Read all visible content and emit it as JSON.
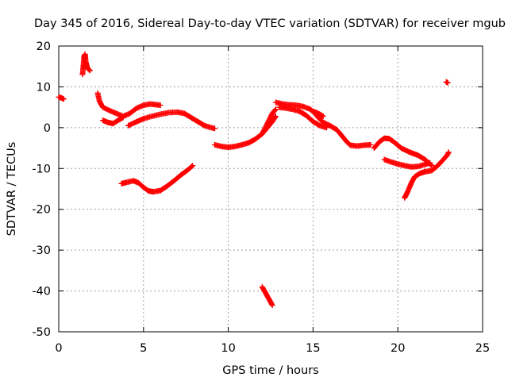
{
  "chart_data": {
    "type": "scatter",
    "title": "Day 345 of 2016, Sidereal Day-to-day VTEC variation (SDTVAR) for receiver mgub",
    "xlabel": "GPS time / hours",
    "ylabel": "SDTVAR / TECUs",
    "xlim": [
      0,
      25
    ],
    "ylim": [
      -50,
      20
    ],
    "xticks": [
      "0",
      "5",
      "10",
      "15",
      "20",
      "25"
    ],
    "yticks": [
      "20",
      "10",
      "0",
      "-10",
      "-20",
      "-30",
      "-40",
      "-50"
    ],
    "grid": true,
    "marker_color": "#ff0000",
    "series": [
      {
        "points": [
          [
            0.0,
            7.5
          ],
          [
            0.15,
            7.3
          ],
          [
            0.3,
            7.0
          ]
        ]
      },
      {
        "points": [
          [
            1.4,
            13.0
          ],
          [
            1.45,
            15.0
          ],
          [
            1.5,
            17.5
          ],
          [
            1.55,
            18.0
          ],
          [
            1.6,
            16.0
          ],
          [
            1.7,
            14.5
          ],
          [
            1.85,
            14.0
          ]
        ]
      },
      {
        "points": [
          [
            2.3,
            8.5
          ],
          [
            2.4,
            6.5
          ],
          [
            2.6,
            5.0
          ],
          [
            3.0,
            4.2
          ],
          [
            3.4,
            3.5
          ],
          [
            3.8,
            2.8
          ],
          [
            4.2,
            3.5
          ],
          [
            4.6,
            4.8
          ],
          [
            5.0,
            5.5
          ],
          [
            5.4,
            5.8
          ],
          [
            5.8,
            5.6
          ],
          [
            6.0,
            5.5
          ]
        ]
      },
      {
        "points": [
          [
            2.6,
            1.8
          ],
          [
            2.9,
            1.3
          ],
          [
            3.2,
            1.0
          ],
          [
            3.5,
            1.8
          ],
          [
            3.8,
            2.5
          ]
        ]
      },
      {
        "points": [
          [
            4.1,
            0.5
          ],
          [
            4.5,
            1.3
          ],
          [
            5.0,
            2.2
          ],
          [
            5.5,
            2.8
          ],
          [
            6.0,
            3.3
          ],
          [
            6.5,
            3.7
          ],
          [
            7.0,
            3.8
          ],
          [
            7.4,
            3.5
          ],
          [
            7.8,
            2.5
          ],
          [
            8.2,
            1.5
          ],
          [
            8.6,
            0.5
          ],
          [
            9.0,
            0.0
          ],
          [
            9.2,
            -0.2
          ]
        ]
      },
      {
        "points": [
          [
            3.7,
            -13.7
          ],
          [
            4.0,
            -13.4
          ],
          [
            4.4,
            -13.0
          ],
          [
            4.7,
            -13.5
          ],
          [
            5.0,
            -14.6
          ],
          [
            5.3,
            -15.5
          ],
          [
            5.6,
            -15.7
          ],
          [
            6.0,
            -15.4
          ],
          [
            6.4,
            -14.3
          ],
          [
            6.8,
            -13.0
          ],
          [
            7.2,
            -11.6
          ],
          [
            7.6,
            -10.4
          ],
          [
            7.9,
            -9.3
          ]
        ]
      },
      {
        "points": [
          [
            9.2,
            -4.2
          ],
          [
            9.6,
            -4.6
          ],
          [
            10.0,
            -4.8
          ],
          [
            10.4,
            -4.6
          ],
          [
            10.8,
            -4.2
          ],
          [
            11.2,
            -3.7
          ],
          [
            11.6,
            -2.8
          ],
          [
            12.0,
            -1.5
          ],
          [
            12.3,
            0.0
          ],
          [
            12.6,
            1.5
          ],
          [
            12.8,
            2.8
          ]
        ]
      },
      {
        "points": [
          [
            12.0,
            -1.5
          ],
          [
            12.3,
            1.0
          ],
          [
            12.6,
            3.5
          ],
          [
            12.8,
            4.5
          ]
        ]
      },
      {
        "points": [
          [
            12.0,
            -39.0
          ],
          [
            12.2,
            -40.5
          ],
          [
            12.4,
            -42.0
          ],
          [
            12.6,
            -43.5
          ]
        ]
      },
      {
        "points": [
          [
            12.8,
            6.2
          ],
          [
            13.2,
            5.8
          ],
          [
            13.6,
            5.6
          ],
          [
            14.0,
            5.5
          ],
          [
            14.4,
            5.2
          ],
          [
            14.8,
            4.6
          ],
          [
            15.1,
            3.6
          ],
          [
            15.3,
            2.5
          ],
          [
            15.6,
            1.3
          ],
          [
            16.0,
            0.5
          ],
          [
            16.4,
            -0.5
          ],
          [
            16.7,
            -2.0
          ],
          [
            17.0,
            -3.5
          ],
          [
            17.2,
            -4.3
          ],
          [
            17.6,
            -4.5
          ],
          [
            18.0,
            -4.3
          ],
          [
            18.4,
            -4.2
          ]
        ]
      },
      {
        "points": [
          [
            13.0,
            5.0
          ],
          [
            13.4,
            4.8
          ],
          [
            13.8,
            4.5
          ],
          [
            14.2,
            4.0
          ],
          [
            14.6,
            3.0
          ],
          [
            15.0,
            1.5
          ],
          [
            15.4,
            0.5
          ],
          [
            15.8,
            0.0
          ]
        ]
      },
      {
        "points": [
          [
            15.0,
            4.0
          ],
          [
            15.3,
            3.5
          ],
          [
            15.6,
            2.8
          ]
        ]
      },
      {
        "points": [
          [
            18.6,
            -5.0
          ],
          [
            18.9,
            -3.5
          ],
          [
            19.2,
            -2.6
          ],
          [
            19.5,
            -2.7
          ],
          [
            19.8,
            -3.6
          ],
          [
            20.2,
            -5.0
          ],
          [
            20.7,
            -6.0
          ],
          [
            21.2,
            -6.8
          ],
          [
            21.6,
            -7.8
          ],
          [
            22.0,
            -9.3
          ]
        ]
      },
      {
        "points": [
          [
            19.2,
            -7.8
          ],
          [
            19.6,
            -8.4
          ],
          [
            20.0,
            -8.9
          ],
          [
            20.4,
            -9.3
          ],
          [
            20.8,
            -9.6
          ],
          [
            21.2,
            -9.5
          ],
          [
            21.6,
            -9.0
          ],
          [
            21.9,
            -8.6
          ]
        ]
      },
      {
        "points": [
          [
            20.4,
            -17.2
          ],
          [
            20.6,
            -15.5
          ],
          [
            20.8,
            -13.5
          ],
          [
            21.0,
            -12.0
          ],
          [
            21.3,
            -11.2
          ],
          [
            21.6,
            -10.8
          ],
          [
            22.0,
            -10.5
          ],
          [
            22.3,
            -9.5
          ],
          [
            22.6,
            -8.2
          ],
          [
            22.9,
            -6.8
          ],
          [
            23.0,
            -6.0
          ]
        ]
      },
      {
        "points": [
          [
            22.85,
            11.2
          ],
          [
            22.95,
            11.0
          ]
        ]
      }
    ]
  }
}
